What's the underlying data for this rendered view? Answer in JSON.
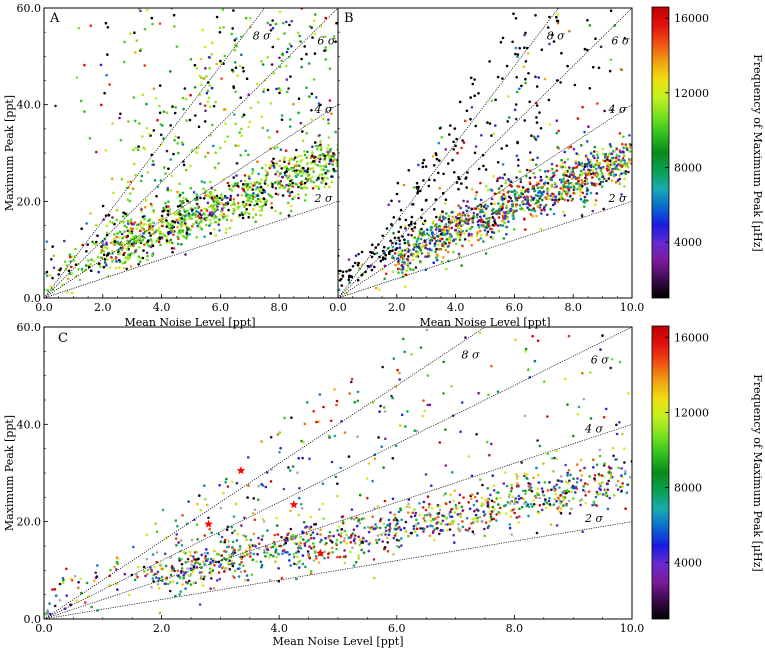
{
  "chart_data": [
    {
      "panel": "A",
      "type": "scatter",
      "xlabel": "Mean Noise Level [ppt]",
      "ylabel": "Maximum Peak [ppt]",
      "xlim": [
        0,
        10
      ],
      "ylim": [
        0,
        60
      ],
      "xticks": [
        "0.0",
        "2.0",
        "4.0",
        "6.0",
        "8.0"
      ],
      "yticks": [
        "0.0",
        "20.0",
        "40.0",
        "60.0"
      ],
      "sigma_lines": [
        {
          "label": "2 σ",
          "slope": 2
        },
        {
          "label": "4 σ",
          "slope": 4
        },
        {
          "label": "6 σ",
          "slope": 6
        },
        {
          "label": "8 σ",
          "slope": 8
        }
      ],
      "point_count": 1500,
      "seed": 11
    },
    {
      "panel": "B",
      "type": "scatter",
      "xlabel": "Mean Noise Level [ppt]",
      "ylabel": "",
      "xlim": [
        0,
        10
      ],
      "ylim": [
        0,
        60
      ],
      "xticks": [
        "0.0",
        "2.0",
        "4.0",
        "6.0",
        "8.0",
        "10.0"
      ],
      "yticks": [],
      "sigma_lines": [
        {
          "label": "2 σ",
          "slope": 2
        },
        {
          "label": "4 σ",
          "slope": 4
        },
        {
          "label": "6 σ",
          "slope": 6
        },
        {
          "label": "8 σ",
          "slope": 8
        }
      ],
      "point_count": 1500,
      "seed": 23
    },
    {
      "panel": "C",
      "type": "scatter",
      "xlabel": "Mean Noise Level [ppt]",
      "ylabel": "Maximum Peak [ppt]",
      "xlim": [
        0,
        10
      ],
      "ylim": [
        0,
        60
      ],
      "xticks": [
        "0.0",
        "2.0",
        "4.0",
        "6.0",
        "8.0",
        "10.0"
      ],
      "yticks": [
        "0.0",
        "20.0",
        "40.0",
        "60.0"
      ],
      "sigma_lines": [
        {
          "label": "2 σ",
          "slope": 2
        },
        {
          "label": "4 σ",
          "slope": 4
        },
        {
          "label": "6 σ",
          "slope": 6
        },
        {
          "label": "8 σ",
          "slope": 8
        }
      ],
      "point_count": 1400,
      "seed": 37,
      "highlighted_stars": [
        {
          "x": 3.35,
          "y": 30.5
        },
        {
          "x": 2.8,
          "y": 19.5
        },
        {
          "x": 4.25,
          "y": 23.5
        },
        {
          "x": 4.7,
          "y": 13.5
        }
      ]
    }
  ],
  "colorbar": {
    "title": "Frequency of Maximum Peak [μHz]",
    "ticks": [
      "4000",
      "8000",
      "12000",
      "16000"
    ],
    "tick_values": [
      4000,
      8000,
      12000,
      16000
    ],
    "range": [
      1000,
      16600
    ],
    "colormap": [
      "#000000",
      "#3a0a4a",
      "#7a1a9a",
      "#6a2ad0",
      "#1a1ae0",
      "#0a6ad0",
      "#1aaab0",
      "#0aa050",
      "#0a8a1a",
      "#30c020",
      "#7ae020",
      "#c0f020",
      "#f0e010",
      "#f0a010",
      "#f05010",
      "#e01010",
      "#c00000"
    ]
  },
  "colors": {
    "star": "#ff0000",
    "grey_point": "#aaaaaa"
  }
}
